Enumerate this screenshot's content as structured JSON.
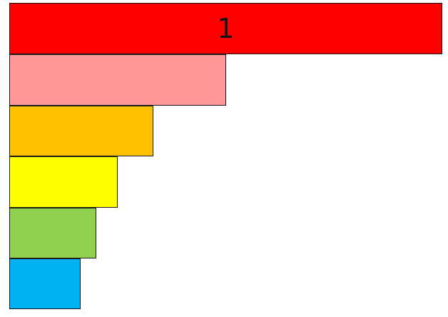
{
  "diagram": {
    "bars": [
      {
        "label": "1",
        "color": "#ff0000"
      },
      {
        "label": "",
        "color": "#ff9999"
      },
      {
        "label": "",
        "color": "#ffc000"
      },
      {
        "label": "",
        "color": "#ffff00"
      },
      {
        "label": "",
        "color": "#92d050"
      },
      {
        "label": "",
        "color": "#00b0f0"
      }
    ]
  }
}
